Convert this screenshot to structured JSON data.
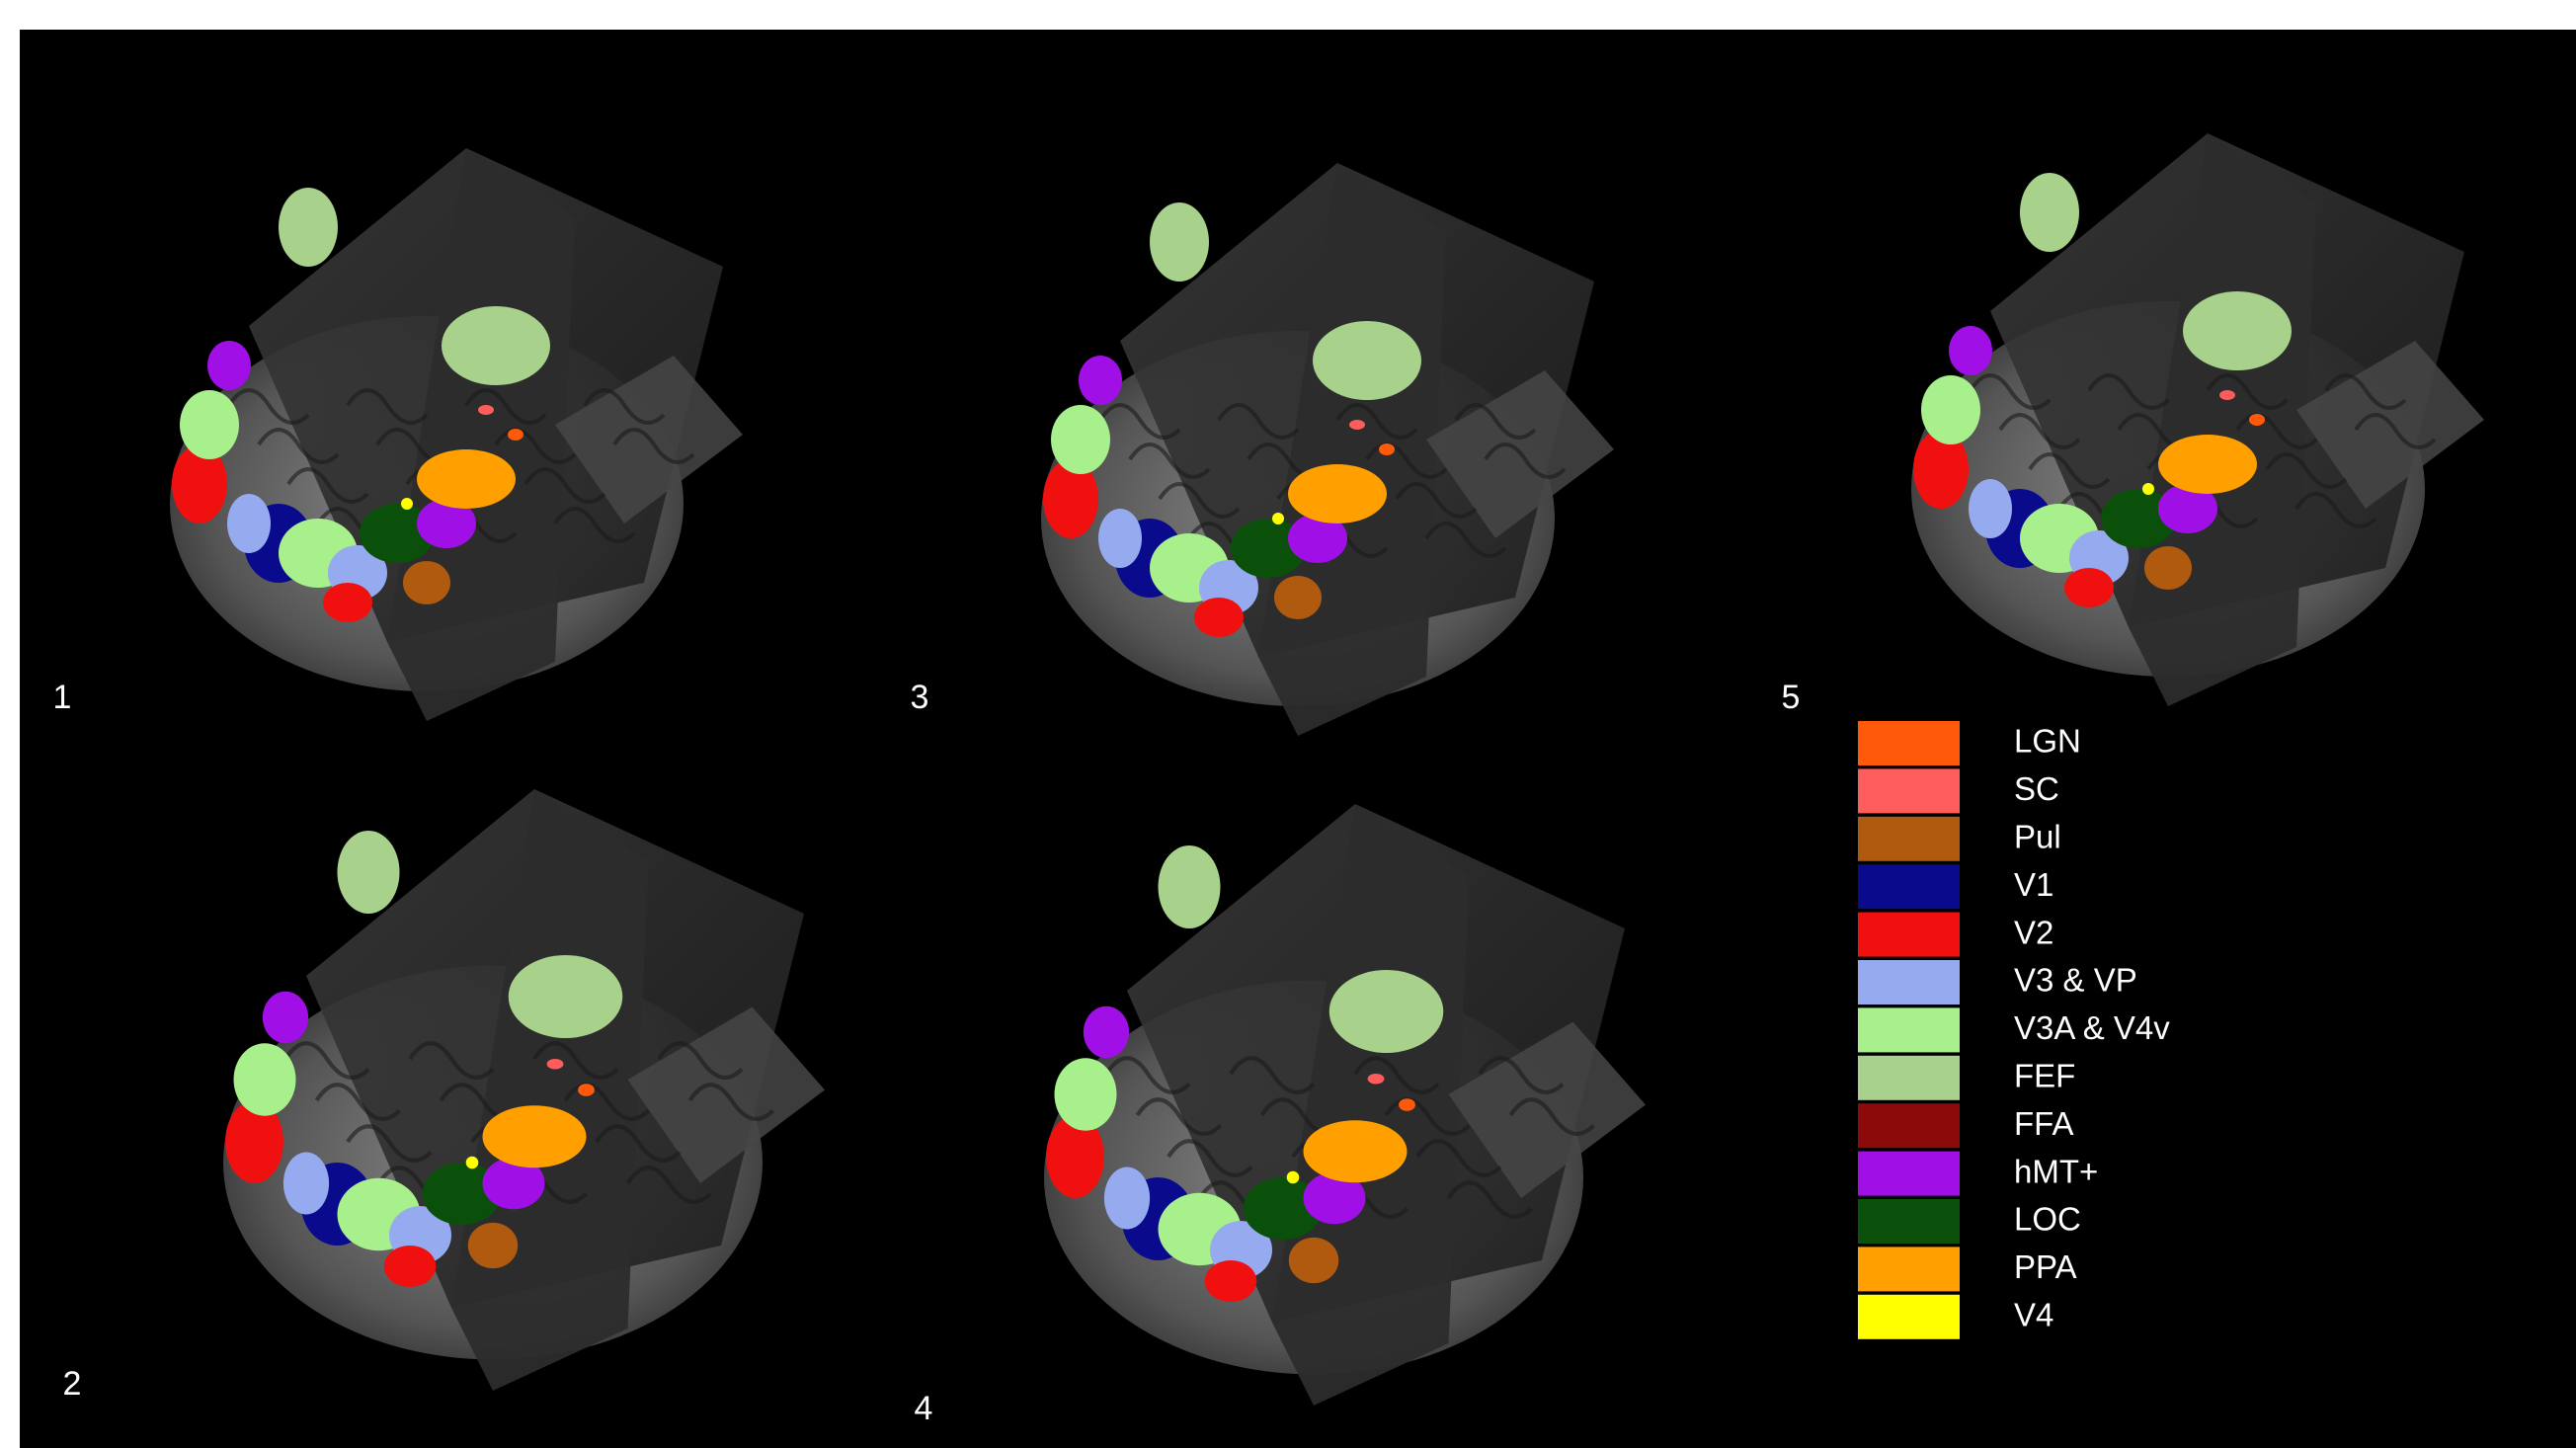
{
  "panels": {
    "labels": [
      "1",
      "2",
      "3",
      "4",
      "5"
    ]
  },
  "legend": {
    "items": [
      {
        "name": "LGN",
        "color": "#ff5a0a"
      },
      {
        "name": "SC",
        "color": "#ff5c5c"
      },
      {
        "name": "Pul",
        "color": "#b05a10"
      },
      {
        "name": "V1",
        "color": "#0a0a8c"
      },
      {
        "name": "V2",
        "color": "#f01010"
      },
      {
        "name": "V3 & VP",
        "color": "#96aaf0"
      },
      {
        "name": "V3A & V4v",
        "color": "#a8f08c"
      },
      {
        "name": "FEF",
        "color": "#a8d28c"
      },
      {
        "name": "FFA",
        "color": "#8c0a0a"
      },
      {
        "name": "hMT+",
        "color": "#a010e6"
      },
      {
        "name": "LOC",
        "color": "#0a500a"
      },
      {
        "name": "PPA",
        "color": "#ffa000"
      },
      {
        "name": "V4",
        "color": "#ffff00"
      }
    ]
  }
}
